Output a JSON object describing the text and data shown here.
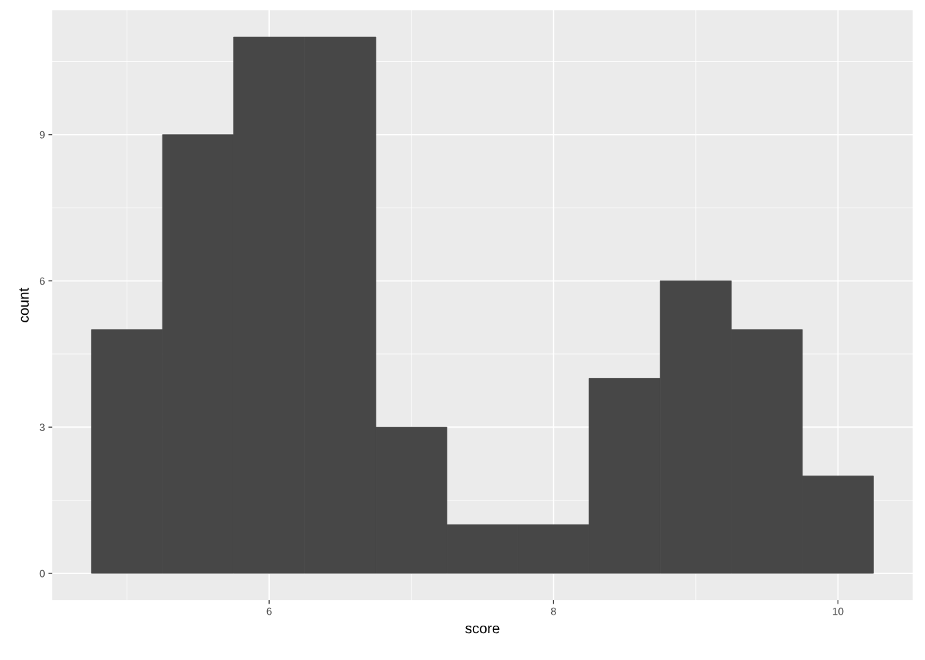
{
  "chart_data": {
    "type": "histogram",
    "xlabel": "score",
    "ylabel": "count",
    "bins": [
      4.75,
      5.25,
      5.75,
      6.25,
      6.75,
      7.25,
      7.75,
      8.25,
      8.75,
      9.25,
      9.75,
      10.25
    ],
    "values": [
      5,
      9,
      11,
      11,
      3,
      1,
      1,
      4,
      6,
      5,
      2
    ],
    "color": "#474747",
    "xlim": [
      4.475,
      10.525
    ],
    "xticks": [
      6,
      8,
      10
    ],
    "ylim": [
      -0.55,
      11.55
    ],
    "yticks": [
      0,
      3,
      6,
      9
    ],
    "grid": true
  }
}
